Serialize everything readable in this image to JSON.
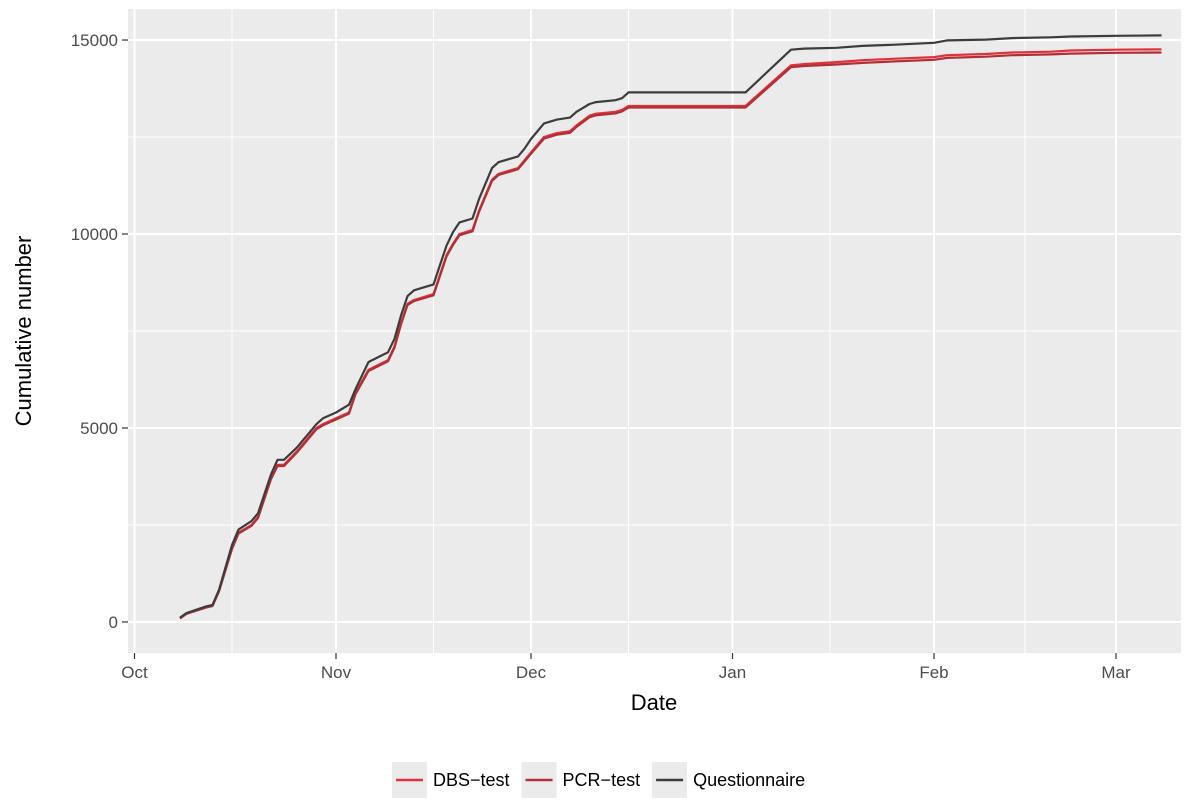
{
  "chart_data": {
    "type": "line",
    "title": "",
    "xlabel": "Date",
    "ylabel": "Cumulative number",
    "x_axis_type": "date",
    "xlim": [
      "2020-09-30",
      "2021-03-11"
    ],
    "ylim": [
      -800,
      15800
    ],
    "x_ticks": [
      {
        "label": "Oct",
        "date": "2020-10-01"
      },
      {
        "label": "Nov",
        "date": "2020-11-01"
      },
      {
        "label": "Dec",
        "date": "2020-12-01"
      },
      {
        "label": "Jan",
        "date": "2021-01-01"
      },
      {
        "label": "Feb",
        "date": "2021-02-01"
      },
      {
        "label": "Mar",
        "date": "2021-03-01"
      }
    ],
    "x_minor_gridlines": [
      "2020-10-16",
      "2020-11-16",
      "2020-12-16",
      "2021-01-16",
      "2021-02-15"
    ],
    "y_ticks": [
      0,
      5000,
      10000,
      15000
    ],
    "y_minor_gridlines": [
      2500,
      7500,
      12500
    ],
    "grid": true,
    "background": "#ebebeb",
    "legend_position": "bottom",
    "series": [
      {
        "name": "DBS−test",
        "color": "#e0313a",
        "points": [
          [
            "2020-10-08",
            100
          ],
          [
            "2020-10-09",
            220
          ],
          [
            "2020-10-12",
            380
          ],
          [
            "2020-10-13",
            420
          ],
          [
            "2020-10-14",
            800
          ],
          [
            "2020-10-16",
            1900
          ],
          [
            "2020-10-17",
            2300
          ],
          [
            "2020-10-19",
            2500
          ],
          [
            "2020-10-20",
            2700
          ],
          [
            "2020-10-22",
            3700
          ],
          [
            "2020-10-23",
            4050
          ],
          [
            "2020-10-24",
            4050
          ],
          [
            "2020-10-26",
            4400
          ],
          [
            "2020-10-27",
            4600
          ],
          [
            "2020-10-28",
            4800
          ],
          [
            "2020-10-29",
            5000
          ],
          [
            "2020-10-30",
            5100
          ],
          [
            "2020-11-01",
            5250
          ],
          [
            "2020-11-03",
            5400
          ],
          [
            "2020-11-04",
            5900
          ],
          [
            "2020-11-06",
            6500
          ],
          [
            "2020-11-09",
            6750
          ],
          [
            "2020-11-10",
            7100
          ],
          [
            "2020-11-11",
            7700
          ],
          [
            "2020-11-12",
            8200
          ],
          [
            "2020-11-13",
            8300
          ],
          [
            "2020-11-16",
            8450
          ],
          [
            "2020-11-17",
            8950
          ],
          [
            "2020-11-18",
            9450
          ],
          [
            "2020-11-19",
            9750
          ],
          [
            "2020-11-20",
            10000
          ],
          [
            "2020-11-22",
            10100
          ],
          [
            "2020-11-23",
            10600
          ],
          [
            "2020-11-24",
            11000
          ],
          [
            "2020-11-25",
            11400
          ],
          [
            "2020-11-26",
            11550
          ],
          [
            "2020-11-29",
            11700
          ],
          [
            "2020-11-30",
            11900
          ],
          [
            "2020-12-01",
            12100
          ],
          [
            "2020-12-03",
            12500
          ],
          [
            "2020-12-05",
            12600
          ],
          [
            "2020-12-07",
            12650
          ],
          [
            "2020-12-08",
            12800
          ],
          [
            "2020-12-10",
            13050
          ],
          [
            "2020-12-11",
            13100
          ],
          [
            "2020-12-14",
            13150
          ],
          [
            "2020-12-15",
            13200
          ],
          [
            "2020-12-16",
            13300
          ],
          [
            "2021-01-03",
            13300
          ],
          [
            "2021-01-10",
            14350
          ],
          [
            "2021-01-12",
            14380
          ],
          [
            "2021-01-17",
            14430
          ],
          [
            "2021-01-21",
            14480
          ],
          [
            "2021-01-26",
            14520
          ],
          [
            "2021-02-01",
            14560
          ],
          [
            "2021-02-03",
            14610
          ],
          [
            "2021-02-09",
            14640
          ],
          [
            "2021-02-13",
            14680
          ],
          [
            "2021-02-19",
            14700
          ],
          [
            "2021-02-22",
            14730
          ],
          [
            "2021-03-01",
            14750
          ],
          [
            "2021-03-08",
            14760
          ]
        ]
      },
      {
        "name": "PCR−test",
        "color": "#b03038",
        "points": [
          [
            "2020-10-08",
            90
          ],
          [
            "2020-10-09",
            210
          ],
          [
            "2020-10-12",
            370
          ],
          [
            "2020-10-13",
            410
          ],
          [
            "2020-10-14",
            790
          ],
          [
            "2020-10-16",
            1880
          ],
          [
            "2020-10-17",
            2280
          ],
          [
            "2020-10-19",
            2480
          ],
          [
            "2020-10-20",
            2680
          ],
          [
            "2020-10-22",
            3680
          ],
          [
            "2020-10-23",
            4020
          ],
          [
            "2020-10-24",
            4020
          ],
          [
            "2020-10-26",
            4370
          ],
          [
            "2020-10-27",
            4570
          ],
          [
            "2020-10-28",
            4770
          ],
          [
            "2020-10-29",
            4970
          ],
          [
            "2020-10-30",
            5070
          ],
          [
            "2020-11-01",
            5220
          ],
          [
            "2020-11-03",
            5370
          ],
          [
            "2020-11-04",
            5870
          ],
          [
            "2020-11-06",
            6470
          ],
          [
            "2020-11-09",
            6720
          ],
          [
            "2020-11-10",
            7070
          ],
          [
            "2020-11-11",
            7670
          ],
          [
            "2020-11-12",
            8170
          ],
          [
            "2020-11-13",
            8270
          ],
          [
            "2020-11-16",
            8420
          ],
          [
            "2020-11-17",
            8920
          ],
          [
            "2020-11-18",
            9420
          ],
          [
            "2020-11-19",
            9720
          ],
          [
            "2020-11-20",
            9970
          ],
          [
            "2020-11-22",
            10070
          ],
          [
            "2020-11-23",
            10570
          ],
          [
            "2020-11-24",
            10970
          ],
          [
            "2020-11-25",
            11370
          ],
          [
            "2020-11-26",
            11520
          ],
          [
            "2020-11-29",
            11670
          ],
          [
            "2020-11-30",
            11870
          ],
          [
            "2020-12-01",
            12070
          ],
          [
            "2020-12-03",
            12460
          ],
          [
            "2020-12-05",
            12560
          ],
          [
            "2020-12-07",
            12610
          ],
          [
            "2020-12-08",
            12760
          ],
          [
            "2020-12-10",
            13010
          ],
          [
            "2020-12-11",
            13060
          ],
          [
            "2020-12-14",
            13110
          ],
          [
            "2020-12-15",
            13160
          ],
          [
            "2020-12-16",
            13260
          ],
          [
            "2021-01-03",
            13260
          ],
          [
            "2021-01-10",
            14300
          ],
          [
            "2021-01-12",
            14330
          ],
          [
            "2021-01-17",
            14370
          ],
          [
            "2021-01-21",
            14410
          ],
          [
            "2021-01-26",
            14450
          ],
          [
            "2021-02-01",
            14490
          ],
          [
            "2021-02-03",
            14540
          ],
          [
            "2021-02-09",
            14570
          ],
          [
            "2021-02-13",
            14610
          ],
          [
            "2021-02-19",
            14630
          ],
          [
            "2021-02-22",
            14650
          ],
          [
            "2021-03-01",
            14670
          ],
          [
            "2021-03-08",
            14680
          ]
        ]
      },
      {
        "name": "Questionnaire",
        "color": "#3c3c3c",
        "points": [
          [
            "2020-10-08",
            110
          ],
          [
            "2020-10-09",
            230
          ],
          [
            "2020-10-12",
            400
          ],
          [
            "2020-10-13",
            440
          ],
          [
            "2020-10-14",
            830
          ],
          [
            "2020-10-16",
            1980
          ],
          [
            "2020-10-17",
            2380
          ],
          [
            "2020-10-19",
            2600
          ],
          [
            "2020-10-20",
            2800
          ],
          [
            "2020-10-22",
            3800
          ],
          [
            "2020-10-23",
            4180
          ],
          [
            "2020-10-24",
            4180
          ],
          [
            "2020-10-26",
            4500
          ],
          [
            "2020-10-27",
            4700
          ],
          [
            "2020-10-28",
            4900
          ],
          [
            "2020-10-29",
            5100
          ],
          [
            "2020-10-30",
            5250
          ],
          [
            "2020-11-01",
            5400
          ],
          [
            "2020-11-03",
            5600
          ],
          [
            "2020-11-04",
            6000
          ],
          [
            "2020-11-06",
            6700
          ],
          [
            "2020-11-09",
            6950
          ],
          [
            "2020-11-10",
            7300
          ],
          [
            "2020-11-11",
            7900
          ],
          [
            "2020-11-12",
            8400
          ],
          [
            "2020-11-13",
            8550
          ],
          [
            "2020-11-16",
            8700
          ],
          [
            "2020-11-17",
            9200
          ],
          [
            "2020-11-18",
            9700
          ],
          [
            "2020-11-19",
            10050
          ],
          [
            "2020-11-20",
            10300
          ],
          [
            "2020-11-22",
            10400
          ],
          [
            "2020-11-23",
            10900
          ],
          [
            "2020-11-24",
            11300
          ],
          [
            "2020-11-25",
            11700
          ],
          [
            "2020-11-26",
            11850
          ],
          [
            "2020-11-29",
            12000
          ],
          [
            "2020-11-30",
            12200
          ],
          [
            "2020-12-01",
            12450
          ],
          [
            "2020-12-03",
            12850
          ],
          [
            "2020-12-05",
            12950
          ],
          [
            "2020-12-07",
            13000
          ],
          [
            "2020-12-08",
            13150
          ],
          [
            "2020-12-10",
            13350
          ],
          [
            "2020-12-11",
            13400
          ],
          [
            "2020-12-14",
            13450
          ],
          [
            "2020-12-15",
            13500
          ],
          [
            "2020-12-16",
            13650
          ],
          [
            "2021-01-03",
            13650
          ],
          [
            "2021-01-10",
            14750
          ],
          [
            "2021-01-12",
            14780
          ],
          [
            "2021-01-17",
            14800
          ],
          [
            "2021-01-21",
            14850
          ],
          [
            "2021-01-26",
            14880
          ],
          [
            "2021-02-01",
            14930
          ],
          [
            "2021-02-03",
            14990
          ],
          [
            "2021-02-09",
            15010
          ],
          [
            "2021-02-13",
            15050
          ],
          [
            "2021-02-19",
            15070
          ],
          [
            "2021-02-22",
            15090
          ],
          [
            "2021-03-01",
            15110
          ],
          [
            "2021-03-08",
            15120
          ]
        ]
      }
    ]
  }
}
